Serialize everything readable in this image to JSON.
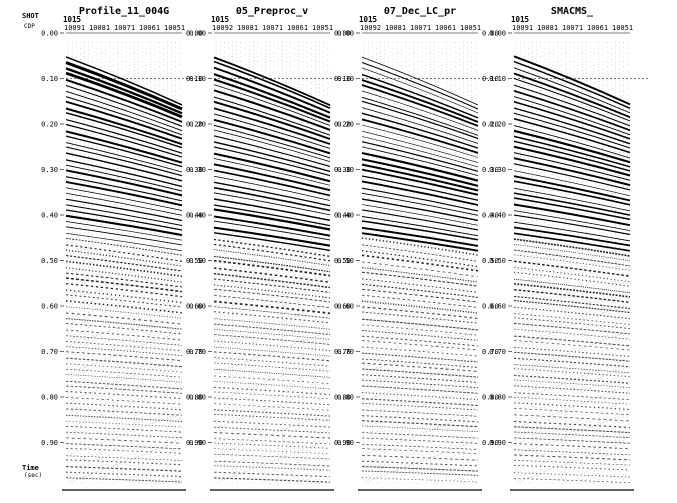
{
  "header": {
    "shot_label": "SHOT",
    "cdp_label": "CDP"
  },
  "footer": {
    "time_label": "Time",
    "time_unit": "(sec)"
  },
  "panels": [
    {
      "title": "Profile_11_004G",
      "shot": "1015",
      "cdp_labels": [
        "10091",
        "10081",
        "10071",
        "10061",
        "10051"
      ]
    },
    {
      "title": "05_Preproc_v",
      "shot": "1015",
      "cdp_labels": [
        "10092",
        "10081",
        "10071",
        "10061",
        "10051"
      ]
    },
    {
      "title": "07_Dec_LC_pr",
      "shot": "1015",
      "cdp_labels": [
        "10092",
        "10081",
        "10071",
        "10061",
        "10051"
      ]
    },
    {
      "title": "SMACMS_",
      "shot": "1015",
      "cdp_labels": [
        "10091",
        "10081",
        "10071",
        "10061",
        "10051"
      ]
    }
  ],
  "time_axis": {
    "ticks": [
      "0.00",
      "0.10",
      "0.20",
      "0.30",
      "0.40",
      "0.50",
      "0.60",
      "0.70",
      "0.80",
      "0.90"
    ],
    "range": [
      0.0,
      1.0
    ],
    "reference_line_time": 0.1
  },
  "colors": {
    "ink": "#000000",
    "background": "#ffffff"
  }
}
